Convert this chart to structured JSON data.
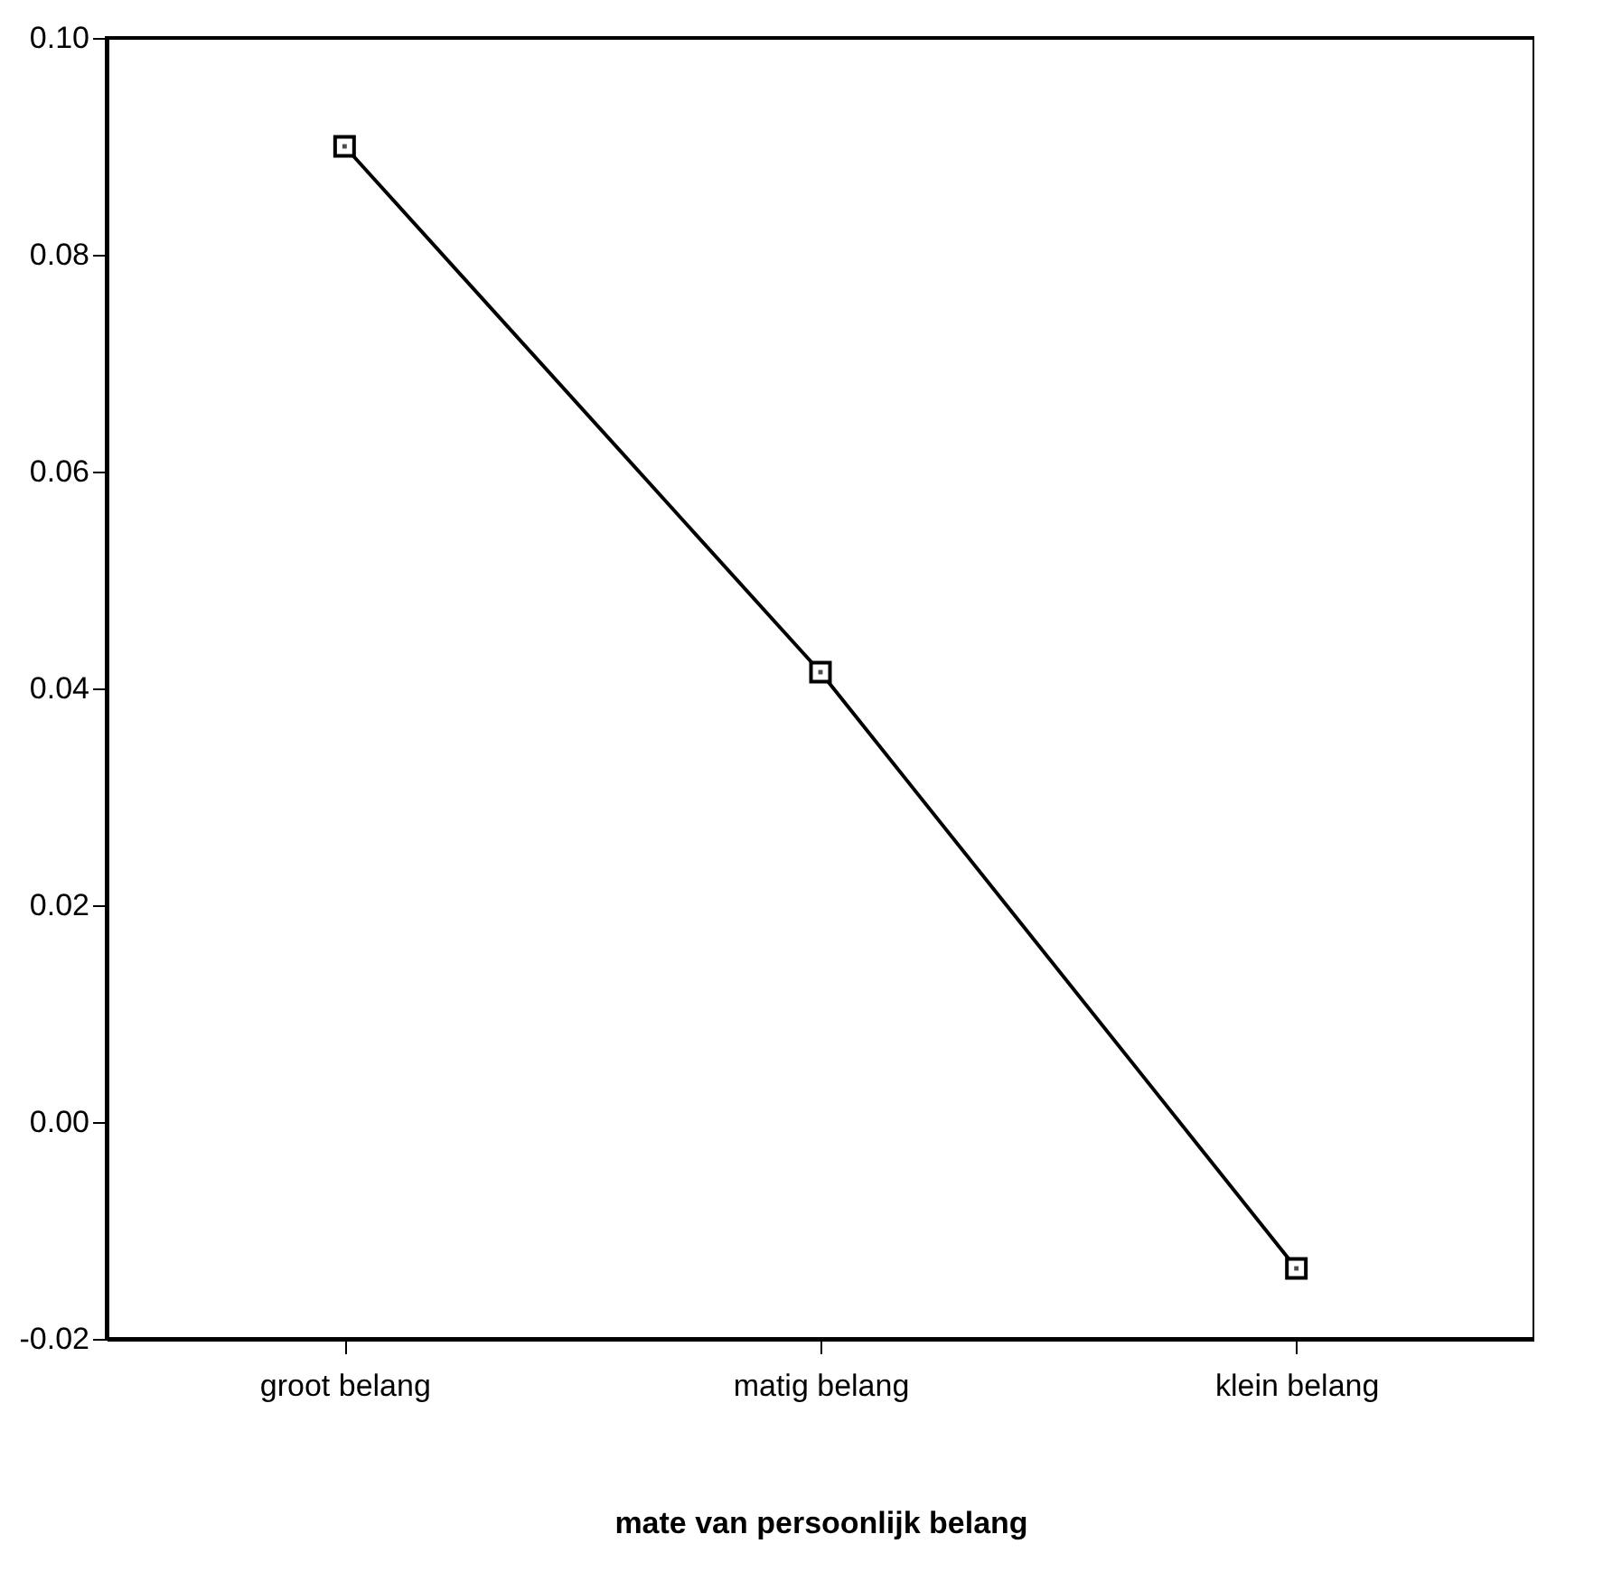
{
  "chart_data": {
    "type": "line",
    "categories": [
      "groot belang",
      "matig belang",
      "klein belang"
    ],
    "series": [
      {
        "color": "#000000",
        "values": [
          0.09,
          0.0415,
          -0.0135
        ]
      }
    ],
    "xlabel": "mate van persoonlijk belang",
    "ylim": [
      -0.02,
      0.1
    ],
    "yticks": [
      {
        "value": -0.02,
        "label": "-0.02"
      },
      {
        "value": 0.0,
        "label": "0.00"
      },
      {
        "value": 0.02,
        "label": "0.02"
      },
      {
        "value": 0.04,
        "label": "0.04"
      },
      {
        "value": 0.06,
        "label": "0.06"
      },
      {
        "value": 0.08,
        "label": "0.08"
      },
      {
        "value": 0.1,
        "label": "0.10"
      }
    ],
    "marker": "square",
    "line_style": "solid",
    "grid": false
  }
}
